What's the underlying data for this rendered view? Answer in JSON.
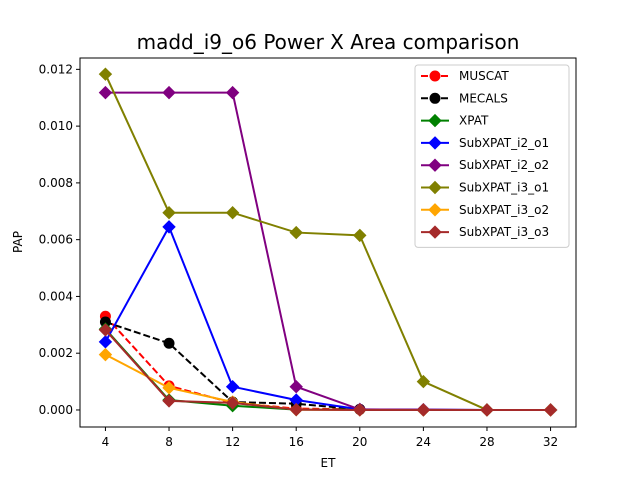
{
  "chart_data": {
    "type": "line",
    "title": "madd_i9_o6 Power X Area comparison",
    "xlabel": "ET",
    "ylabel": "PAP",
    "xlim": [
      2.4,
      33.6
    ],
    "ylim": [
      -0.0006,
      0.0124
    ],
    "xticks": [
      4,
      8,
      12,
      16,
      20,
      24,
      28,
      32
    ],
    "xtick_labels": [
      "4",
      "8",
      "12",
      "16",
      "20",
      "24",
      "28",
      "32"
    ],
    "yticks": [
      0,
      0.002,
      0.004,
      0.006,
      0.008,
      0.01,
      0.012
    ],
    "ytick_labels": [
      "0.000",
      "0.002",
      "0.004",
      "0.006",
      "0.008",
      "0.010",
      "0.012"
    ],
    "legend_position": "top-right",
    "grid": false,
    "series": [
      {
        "name": "MUSCAT",
        "color": "#ff0000",
        "dash": "dashed",
        "marker": "circle",
        "x": [
          4,
          8,
          12,
          16,
          20
        ],
        "y": [
          0.0033,
          0.00085,
          0.00025,
          5e-05,
          2e-05
        ]
      },
      {
        "name": "MECALS",
        "color": "#000000",
        "dash": "dashed",
        "marker": "circle",
        "x": [
          4,
          8,
          12,
          16,
          20
        ],
        "y": [
          0.0031,
          0.00235,
          0.00028,
          0.00022,
          2e-05
        ]
      },
      {
        "name": "XPAT",
        "color": "#008000",
        "dash": "solid",
        "marker": "diamond",
        "x": [
          4,
          8,
          12,
          16,
          20,
          24,
          28,
          32
        ],
        "y": [
          0.00285,
          0.00035,
          0.00015,
          1e-05,
          1e-05,
          0.0,
          0.0,
          0.0
        ]
      },
      {
        "name": "SubXPAT_i2_o1",
        "color": "#0000ff",
        "dash": "solid",
        "marker": "diamond",
        "x": [
          4,
          8,
          12,
          16,
          20,
          24,
          28,
          32
        ],
        "y": [
          0.0024,
          0.00645,
          0.00082,
          0.00035,
          2e-05,
          1e-05,
          0.0,
          0.0
        ]
      },
      {
        "name": "SubXPAT_i2_o2",
        "color": "#800080",
        "dash": "solid",
        "marker": "diamond",
        "x": [
          4,
          8,
          12,
          16,
          20,
          24,
          28,
          32
        ],
        "y": [
          0.01118,
          0.01118,
          0.01118,
          0.00082,
          2e-05,
          1e-05,
          0.0,
          0.0
        ]
      },
      {
        "name": "SubXPAT_i3_o1",
        "color": "#808000",
        "dash": "solid",
        "marker": "diamond",
        "x": [
          4,
          8,
          12,
          16,
          20,
          24,
          28,
          32
        ],
        "y": [
          0.01183,
          0.00695,
          0.00695,
          0.00625,
          0.00615,
          0.001,
          0.0,
          0.0
        ]
      },
      {
        "name": "SubXPAT_i3_o2",
        "color": "#ffa500",
        "dash": "solid",
        "marker": "diamond",
        "x": [
          4,
          8,
          12,
          16,
          20,
          24,
          28,
          32
        ],
        "y": [
          0.00195,
          0.00078,
          0.00028,
          1e-05,
          0.0,
          0.0,
          0.0,
          0.0
        ]
      },
      {
        "name": "SubXPAT_i3_o3",
        "color": "#a52a2a",
        "dash": "solid",
        "marker": "diamond",
        "x": [
          4,
          8,
          12,
          16,
          20,
          24,
          28,
          32
        ],
        "y": [
          0.00282,
          0.00032,
          0.00025,
          1e-05,
          0.0,
          0.0,
          0.0,
          0.0
        ]
      }
    ]
  }
}
